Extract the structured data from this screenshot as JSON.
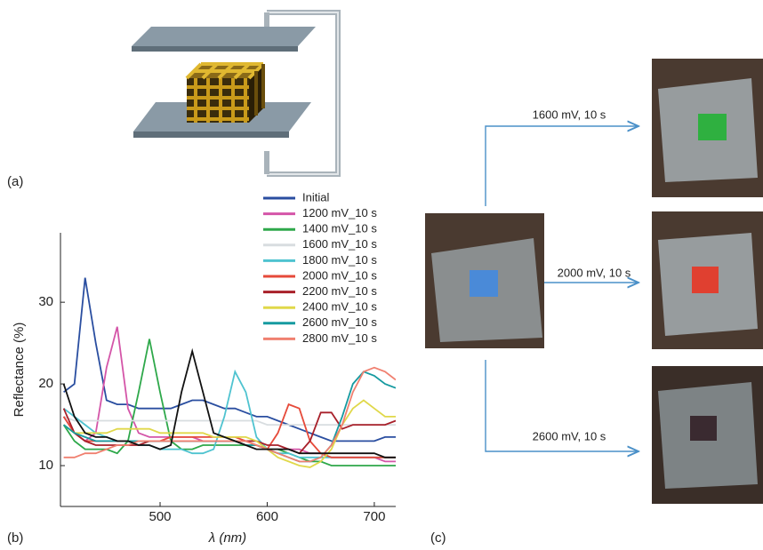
{
  "panels": {
    "a": "(a)",
    "b": "(b)",
    "c": "(c)"
  },
  "treatments": [
    "1600 mV, 10 s",
    "2000 mV, 10 s",
    "2600 mV, 10 s"
  ],
  "chart_data": {
    "type": "line",
    "x_label": "λ (nm)",
    "y_label": "Reflectance (%)",
    "x": [
      410,
      420,
      430,
      440,
      450,
      460,
      470,
      480,
      490,
      500,
      510,
      520,
      530,
      540,
      550,
      560,
      570,
      580,
      590,
      600,
      610,
      620,
      630,
      640,
      650,
      660,
      670,
      680,
      690,
      700,
      710,
      720
    ],
    "xlim": [
      407,
      720
    ],
    "ylim": [
      5,
      38.5
    ],
    "xticks": [
      500,
      600,
      700
    ],
    "yticks": [
      10,
      20,
      30
    ],
    "legend": "top-right",
    "series": [
      {
        "name": "Initial",
        "color": "#2a4ea0",
        "values": [
          19,
          20,
          33,
          25,
          18,
          17.5,
          17.5,
          17,
          17,
          17,
          17,
          17.5,
          18,
          18,
          17.5,
          17,
          17,
          16.5,
          16,
          16,
          15.5,
          15,
          14.5,
          14,
          13.5,
          13,
          13,
          13,
          13,
          13,
          13.5,
          13.5
        ]
      },
      {
        "name": "1200 mV_10 s",
        "color": "#d455a8",
        "values": [
          16,
          14,
          13,
          14,
          22,
          27,
          17,
          14,
          13.5,
          13.5,
          13.5,
          13.5,
          13.5,
          13,
          13,
          13,
          13,
          12.5,
          12.5,
          12,
          12,
          12,
          12,
          11.5,
          11.5,
          11,
          11,
          11,
          11,
          11,
          10.5,
          10.5
        ]
      },
      {
        "name": "1400 mV_10 s",
        "color": "#2ea84a",
        "values": [
          15,
          13,
          12,
          12,
          12,
          11.5,
          13,
          19,
          25.5,
          19,
          13,
          12,
          12,
          12.5,
          12.5,
          12.5,
          12.5,
          12.5,
          12.5,
          12,
          12,
          11.5,
          11,
          10.5,
          10.5,
          10,
          10,
          10,
          10,
          10,
          10,
          10
        ]
      },
      {
        "name": "1600 mV_10 s",
        "color": "#d8dde0",
        "values": [
          16,
          15.5,
          15.5,
          15.5,
          15.5,
          15.5,
          15.5,
          15.5,
          15.5,
          15.5,
          15.5,
          15.5,
          15.5,
          15.5,
          15.5,
          15.5,
          15.5,
          15.5,
          15.5,
          15,
          15,
          15,
          15,
          15,
          15,
          15,
          15,
          15,
          15,
          15,
          15,
          15
        ]
      },
      {
        "name": "1800 mV_10 s",
        "color": "#4fc3d0",
        "values": [
          17,
          16,
          15,
          14,
          13.5,
          13,
          13,
          12.5,
          12.5,
          12,
          12,
          12,
          11.5,
          11.5,
          12,
          16,
          21.5,
          19,
          13.5,
          12,
          11.5,
          11.5,
          11,
          11,
          11,
          11,
          11,
          11,
          11,
          11,
          11,
          11
        ]
      },
      {
        "name": "2000 mV_10 s",
        "color": "#e64a3a",
        "values": [
          16,
          14,
          13,
          13,
          13,
          13,
          13,
          13,
          13,
          13,
          13.5,
          13.5,
          13.5,
          13.5,
          13.5,
          13.5,
          13.5,
          13,
          12.5,
          12,
          14,
          17.5,
          17,
          13,
          11.5,
          11,
          11,
          11,
          11,
          11,
          11,
          11
        ]
      },
      {
        "name": "2200 mV_10 s",
        "color": "#a8202a",
        "values": [
          17,
          14,
          13,
          12.5,
          12.5,
          12.5,
          12.5,
          12.5,
          13,
          13,
          13,
          13,
          13,
          13,
          13,
          13,
          13,
          13,
          13,
          12.5,
          12.5,
          12,
          11.5,
          13,
          16.5,
          16.5,
          14.5,
          15,
          15,
          15,
          15,
          15.5
        ]
      },
      {
        "name": "2400 mV_10 s",
        "color": "#e0d84a",
        "values": [
          15,
          14,
          14,
          14,
          14,
          14.5,
          14.5,
          14.5,
          14.5,
          14,
          14,
          14,
          14,
          14,
          13.5,
          13.5,
          13.5,
          13.5,
          13,
          12,
          11,
          10.5,
          10,
          9.8,
          10.5,
          12,
          15,
          17,
          18,
          17,
          16,
          16
        ]
      },
      {
        "name": "2600 mV_10 s",
        "color": "#169aa0",
        "values": [
          15,
          14,
          13.5,
          13,
          13,
          13,
          13,
          13,
          13,
          13,
          13,
          13,
          13,
          13,
          13,
          13,
          13,
          12.5,
          12.5,
          12,
          11.5,
          11,
          10.5,
          10.5,
          11,
          12.5,
          16,
          20,
          21.5,
          21,
          20,
          19.5
        ]
      },
      {
        "name": "2800 mV_10 s",
        "color": "#f08070",
        "values": [
          11,
          11,
          11.5,
          11.5,
          12,
          12.5,
          12.5,
          13,
          13,
          13,
          13,
          13,
          13,
          13,
          13,
          13,
          13,
          13,
          12.5,
          12,
          11.5,
          11,
          10.5,
          10.5,
          11,
          12.5,
          15,
          19,
          21.5,
          22,
          21.5,
          20.5
        ]
      },
      {
        "color": "#111111",
        "values": [
          20,
          16,
          14,
          13.5,
          13.5,
          13,
          13,
          12.5,
          12.5,
          12,
          12.5,
          19,
          24,
          19,
          14,
          13.5,
          13,
          12.5,
          12,
          12,
          12,
          12,
          11.5,
          11.5,
          11.5,
          11.5,
          11.5,
          11.5,
          11.5,
          11.5,
          11,
          11
        ]
      }
    ]
  }
}
